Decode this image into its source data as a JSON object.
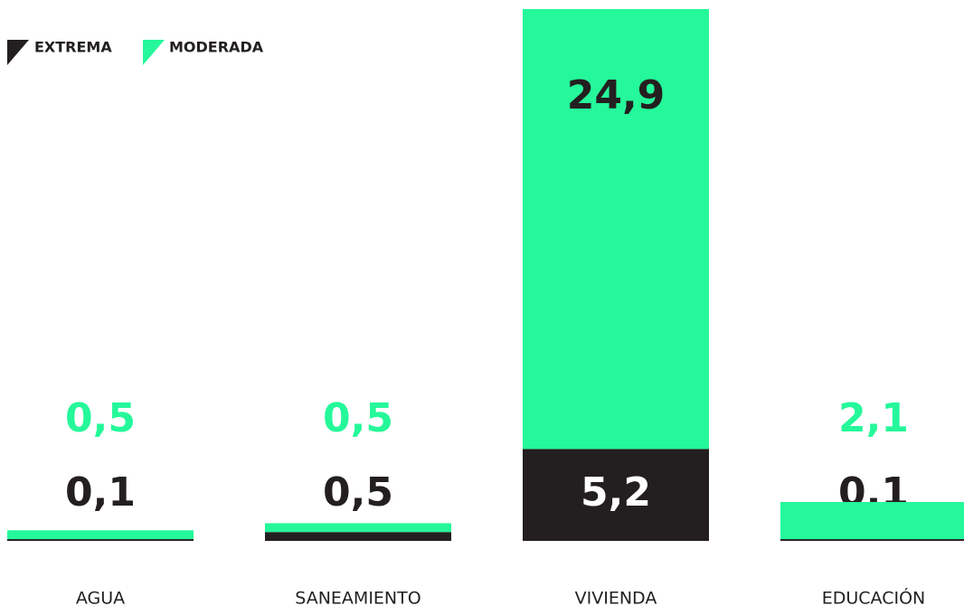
{
  "chart_data": {
    "type": "stacked_bar",
    "categories": [
      "AGUA",
      "SANEAMIENTO",
      "VIVIENDA",
      "EDUCACIÓN"
    ],
    "series": [
      {
        "name": "EXTREMA",
        "color": "#231f20",
        "values": [
          0.1,
          0.5,
          5.2,
          0.1
        ],
        "value_labels": [
          "0,1",
          "0,5",
          "5,2",
          "0,1"
        ]
      },
      {
        "name": "MODERADA",
        "color": "#25f89a",
        "values": [
          0.5,
          0.5,
          24.9,
          2.1
        ],
        "value_labels": [
          "0,5",
          "0,5",
          "24,9",
          "2,1"
        ]
      }
    ]
  }
}
